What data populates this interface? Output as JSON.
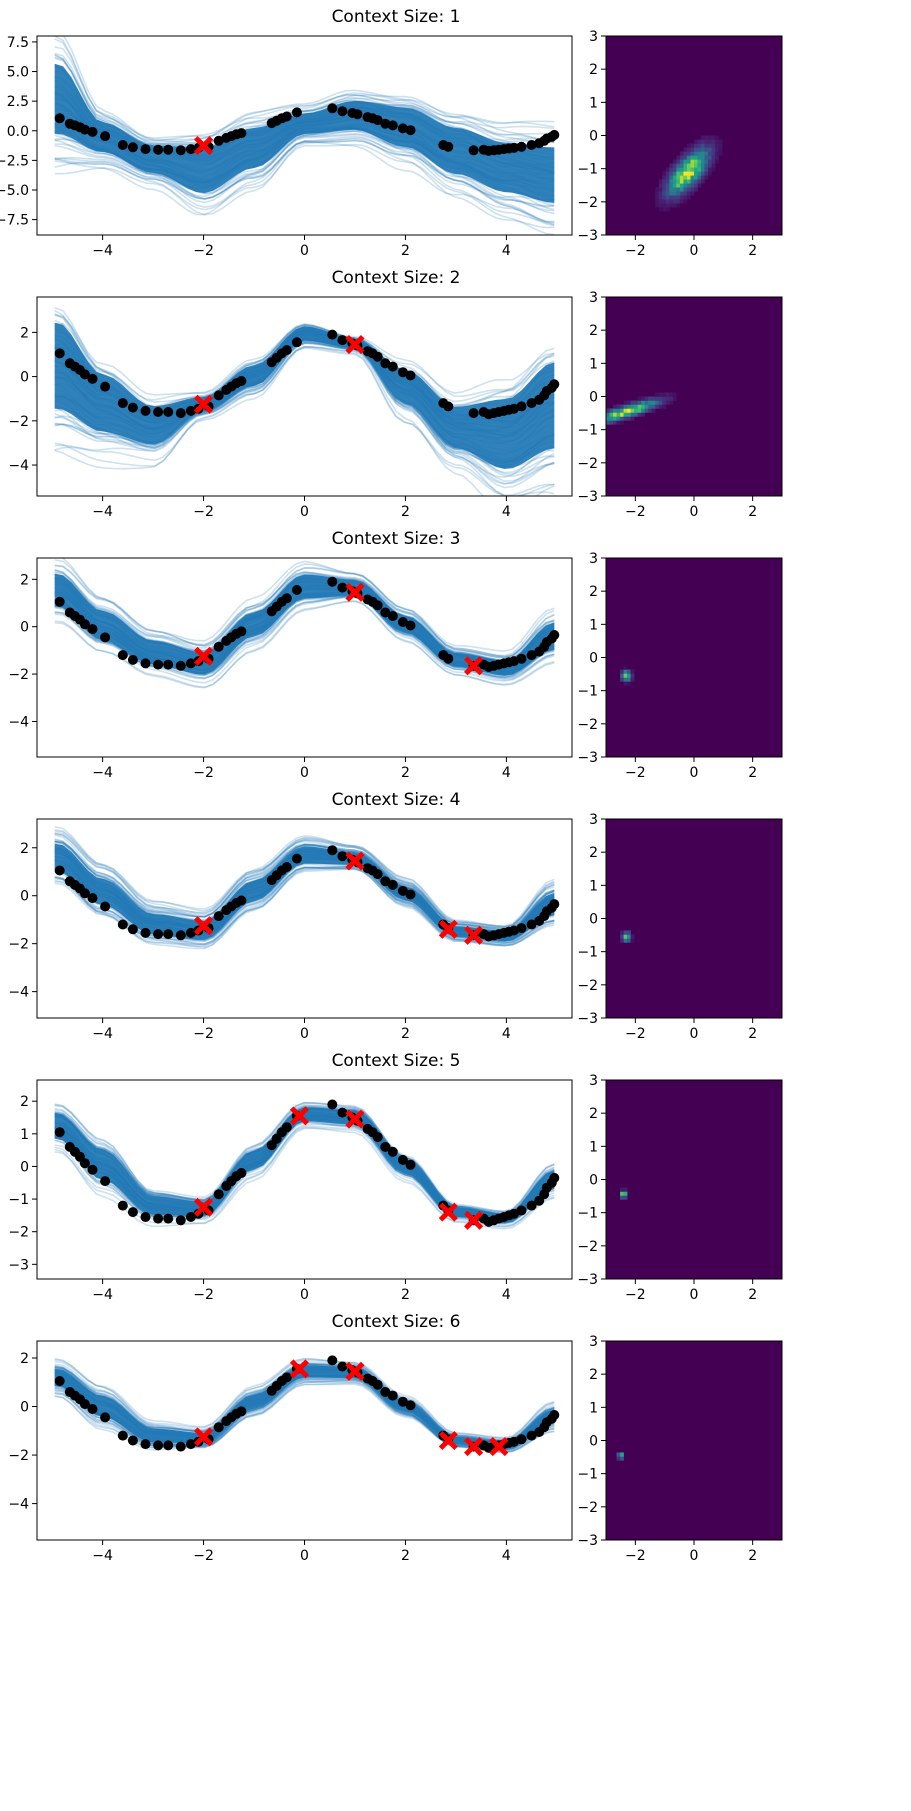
{
  "chart_data": [
    {
      "title": "Context Size: 1",
      "line": {
        "type": "line",
        "xlim": [
          -5.3,
          5.3
        ],
        "ylim": [
          -8.8,
          8.0
        ],
        "xticks": [
          -4,
          -2,
          0,
          2,
          4
        ],
        "yticks": [
          -7.5,
          -5.0,
          -2.5,
          0.0,
          2.5,
          5.0,
          7.5
        ],
        "ytick_labels": [
          "−7.5",
          "−5.0",
          "−2.5",
          "0.0",
          "2.5",
          "5.0",
          "7.5"
        ],
        "samples_color": "#1f77b4",
        "data_color": "#000000",
        "context_color": "#ff0000",
        "context_points": [
          {
            "x": -2.0,
            "y": -1.25
          }
        ],
        "band": {
          "x": [
            -4.9,
            -4.0,
            -3.0,
            -2.0,
            -1.0,
            0.0,
            1.0,
            2.0,
            3.0,
            4.0,
            4.95
          ],
          "lo": [
            -1.4,
            -2.3,
            -4.0,
            -6.0,
            -3.8,
            -0.6,
            -0.4,
            -2.0,
            -4.4,
            -6.0,
            -7.0
          ],
          "hi": [
            6.8,
            1.2,
            -0.8,
            -0.7,
            0.9,
            1.8,
            3.0,
            2.6,
            1.0,
            -0.2,
            -0.5
          ]
        }
      },
      "heatmap": {
        "type": "heatmap",
        "xlim": [
          -3,
          3
        ],
        "ylim": [
          -3,
          3
        ],
        "xticks": [
          -2,
          0,
          2
        ],
        "yticks": [
          -3,
          -2,
          -1,
          0,
          1,
          2,
          3
        ],
        "mode": {
          "x": -0.2,
          "y": -1.1
        },
        "spread": {
          "sx": 0.45,
          "sy": 0.45
        },
        "corr": 0.7
      }
    },
    {
      "title": "Context Size: 2",
      "line": {
        "type": "line",
        "xlim": [
          -5.3,
          5.3
        ],
        "ylim": [
          -5.4,
          3.6
        ],
        "xticks": [
          -4,
          -2,
          0,
          2,
          4
        ],
        "yticks": [
          -4,
          -2,
          0,
          2
        ],
        "ytick_labels": [
          "−4",
          "−2",
          "0",
          "2"
        ],
        "samples_color": "#1f77b4",
        "data_color": "#000000",
        "context_color": "#ff0000",
        "context_points": [
          {
            "x": -2.0,
            "y": -1.25
          },
          {
            "x": 1.0,
            "y": 1.45
          }
        ],
        "band": {
          "x": [
            -4.9,
            -4.0,
            -3.0,
            -2.0,
            -1.0,
            0.0,
            1.0,
            2.0,
            3.0,
            4.0,
            4.95
          ],
          "lo": [
            -2.2,
            -3.0,
            -3.4,
            -1.7,
            -0.6,
            1.5,
            1.2,
            -1.5,
            -3.6,
            -4.8,
            -4.0
          ],
          "hi": [
            3.2,
            0.6,
            -1.0,
            -0.8,
            0.7,
            2.4,
            1.8,
            0.6,
            -1.0,
            -0.4,
            1.4
          ]
        }
      },
      "heatmap": {
        "type": "heatmap",
        "xlim": [
          -3,
          3
        ],
        "ylim": [
          -3,
          3
        ],
        "xticks": [
          -2,
          0,
          2
        ],
        "yticks": [
          -3,
          -2,
          -1,
          0,
          1,
          2,
          3
        ],
        "mode": {
          "x": -2.3,
          "y": -0.45
        },
        "spread": {
          "sx": 0.7,
          "sy": 0.22
        },
        "corr": 0.85
      }
    },
    {
      "title": "Context Size: 3",
      "line": {
        "type": "line",
        "xlim": [
          -5.3,
          5.3
        ],
        "ylim": [
          -5.5,
          2.9
        ],
        "xticks": [
          -4,
          -2,
          0,
          2,
          4
        ],
        "yticks": [
          -4,
          -2,
          0,
          2
        ],
        "ytick_labels": [
          "−4",
          "−2",
          "0",
          "2"
        ],
        "samples_color": "#1f77b4",
        "data_color": "#000000",
        "context_color": "#ff0000",
        "context_points": [
          {
            "x": -2.0,
            "y": -1.25
          },
          {
            "x": 1.0,
            "y": 1.45
          },
          {
            "x": 3.35,
            "y": -1.65
          }
        ],
        "band": {
          "x": [
            -4.9,
            -4.0,
            -3.0,
            -2.0,
            -1.0,
            0.0,
            1.0,
            2.0,
            3.0,
            4.0,
            4.95
          ],
          "lo": [
            0.6,
            -0.8,
            -1.8,
            -2.2,
            -0.6,
            1.0,
            1.2,
            -0.4,
            -1.8,
            -2.2,
            -1.2
          ],
          "hi": [
            2.5,
            0.9,
            -0.4,
            -0.9,
            0.8,
            2.4,
            2.1,
            0.6,
            -1.0,
            -1.3,
            0.4
          ]
        }
      },
      "heatmap": {
        "type": "heatmap",
        "xlim": [
          -3,
          3
        ],
        "ylim": [
          -3,
          3
        ],
        "xticks": [
          -2,
          0,
          2
        ],
        "yticks": [
          -3,
          -2,
          -1,
          0,
          1,
          2,
          3
        ],
        "mode": {
          "x": -2.3,
          "y": -0.55
        },
        "spread": {
          "sx": 0.1,
          "sy": 0.1
        },
        "corr": 0
      }
    },
    {
      "title": "Context Size: 4",
      "line": {
        "type": "line",
        "xlim": [
          -5.3,
          5.3
        ],
        "ylim": [
          -5.1,
          3.2
        ],
        "xticks": [
          -4,
          -2,
          0,
          2,
          4
        ],
        "yticks": [
          -4,
          -2,
          0,
          2
        ],
        "ytick_labels": [
          "−4",
          "−2",
          "0",
          "2"
        ],
        "samples_color": "#1f77b4",
        "data_color": "#000000",
        "context_color": "#ff0000",
        "context_points": [
          {
            "x": -2.0,
            "y": -1.25
          },
          {
            "x": 1.0,
            "y": 1.45
          },
          {
            "x": 2.85,
            "y": -1.4
          },
          {
            "x": 3.35,
            "y": -1.65
          }
        ],
        "band": {
          "x": [
            -4.9,
            -4.0,
            -3.0,
            -2.0,
            -1.0,
            0.0,
            1.0,
            2.0,
            3.0,
            4.0,
            4.95
          ],
          "lo": [
            0.8,
            -0.6,
            -1.8,
            -2.0,
            -0.4,
            1.2,
            1.2,
            -0.3,
            -1.8,
            -2.0,
            -1.0
          ],
          "hi": [
            2.4,
            0.9,
            -0.6,
            -0.9,
            0.8,
            2.2,
            1.9,
            0.5,
            -1.2,
            -1.4,
            0.3
          ]
        }
      },
      "heatmap": {
        "type": "heatmap",
        "xlim": [
          -3,
          3
        ],
        "ylim": [
          -3,
          3
        ],
        "xticks": [
          -2,
          0,
          2
        ],
        "yticks": [
          -3,
          -2,
          -1,
          0,
          1,
          2,
          3
        ],
        "mode": {
          "x": -2.3,
          "y": -0.55
        },
        "spread": {
          "sx": 0.09,
          "sy": 0.09
        },
        "corr": 0
      }
    },
    {
      "title": "Context Size: 5",
      "line": {
        "type": "line",
        "xlim": [
          -5.3,
          5.3
        ],
        "ylim": [
          -3.45,
          2.65
        ],
        "xticks": [
          -4,
          -2,
          0,
          2,
          4
        ],
        "yticks": [
          -3,
          -2,
          -1,
          0,
          1,
          2
        ],
        "ytick_labels": [
          "−3",
          "−2",
          "−1",
          "0",
          "1",
          "2"
        ],
        "samples_color": "#1f77b4",
        "data_color": "#000000",
        "context_color": "#ff0000",
        "context_points": [
          {
            "x": -2.0,
            "y": -1.25
          },
          {
            "x": -0.1,
            "y": 1.55
          },
          {
            "x": 1.0,
            "y": 1.45
          },
          {
            "x": 2.85,
            "y": -1.4
          },
          {
            "x": 3.35,
            "y": -1.65
          }
        ],
        "band": {
          "x": [
            -4.9,
            -4.0,
            -3.0,
            -2.0,
            -1.0,
            0.0,
            1.0,
            2.0,
            3.0,
            4.0,
            4.95
          ],
          "lo": [
            0.7,
            -0.6,
            -1.6,
            -1.6,
            -0.2,
            1.3,
            1.2,
            -0.3,
            -1.6,
            -1.8,
            -0.8
          ],
          "hi": [
            1.8,
            0.7,
            -0.8,
            -1.0,
            0.6,
            1.9,
            1.8,
            0.3,
            -1.2,
            -1.4,
            0.0
          ]
        }
      },
      "heatmap": {
        "type": "heatmap",
        "xlim": [
          -3,
          3
        ],
        "ylim": [
          -3,
          3
        ],
        "xticks": [
          -2,
          0,
          2
        ],
        "yticks": [
          -3,
          -2,
          -1,
          0,
          1,
          2,
          3
        ],
        "mode": {
          "x": -2.4,
          "y": -0.45
        },
        "spread": {
          "sx": 0.07,
          "sy": 0.07
        },
        "corr": 0
      }
    },
    {
      "title": "Context Size: 6",
      "line": {
        "type": "line",
        "xlim": [
          -5.3,
          5.3
        ],
        "ylim": [
          -5.5,
          2.7
        ],
        "xticks": [
          -4,
          -2,
          0,
          2,
          4
        ],
        "yticks": [
          -4,
          -2,
          0,
          2
        ],
        "ytick_labels": [
          "−4",
          "−2",
          "0",
          "2"
        ],
        "samples_color": "#1f77b4",
        "data_color": "#000000",
        "context_color": "#ff0000",
        "context_points": [
          {
            "x": -2.0,
            "y": -1.25
          },
          {
            "x": -0.1,
            "y": 1.55
          },
          {
            "x": 1.0,
            "y": 1.45
          },
          {
            "x": 2.85,
            "y": -1.4
          },
          {
            "x": 3.35,
            "y": -1.65
          },
          {
            "x": 3.85,
            "y": -1.65
          }
        ],
        "band": {
          "x": [
            -4.9,
            -4.0,
            -3.0,
            -2.0,
            -1.0,
            0.0,
            1.0,
            2.0,
            3.0,
            4.0,
            4.95
          ],
          "lo": [
            0.7,
            -0.6,
            -1.6,
            -1.6,
            -0.2,
            1.1,
            1.1,
            -0.3,
            -1.6,
            -1.8,
            -0.8
          ],
          "hi": [
            1.7,
            0.6,
            -0.8,
            -1.0,
            0.6,
            1.8,
            1.7,
            0.3,
            -1.2,
            -1.4,
            0.0
          ]
        }
      },
      "heatmap": {
        "type": "heatmap",
        "xlim": [
          -3,
          3
        ],
        "ylim": [
          -3,
          3
        ],
        "xticks": [
          -2,
          0,
          2
        ],
        "yticks": [
          -3,
          -2,
          -1,
          0,
          1,
          2,
          3
        ],
        "mode": {
          "x": -2.5,
          "y": -0.45
        },
        "spread": {
          "sx": 0.06,
          "sy": 0.06
        },
        "corr": 0
      }
    }
  ],
  "observed_data": {
    "x": [
      -4.85,
      -4.65,
      -4.55,
      -4.45,
      -4.35,
      -4.2,
      -3.95,
      -3.6,
      -3.4,
      -3.15,
      -2.9,
      -2.7,
      -2.45,
      -2.25,
      -2.1,
      -1.9,
      -1.7,
      -1.55,
      -1.45,
      -1.35,
      -1.25,
      -0.65,
      -0.55,
      -0.45,
      -0.35,
      -0.15,
      0.55,
      0.75,
      0.95,
      1.05,
      1.25,
      1.35,
      1.45,
      1.6,
      1.75,
      1.95,
      2.1,
      2.75,
      2.85,
      3.35,
      3.55,
      3.65,
      3.75,
      3.85,
      3.95,
      4.05,
      4.15,
      4.3,
      4.5,
      4.65,
      4.75,
      4.8,
      4.9,
      4.95
    ],
    "y": [
      1.05,
      0.6,
      0.45,
      0.3,
      0.1,
      -0.1,
      -0.45,
      -1.2,
      -1.4,
      -1.55,
      -1.6,
      -1.6,
      -1.65,
      -1.55,
      -1.45,
      -1.35,
      -0.85,
      -0.6,
      -0.45,
      -0.3,
      -0.2,
      0.65,
      0.85,
      1.05,
      1.2,
      1.55,
      1.9,
      1.65,
      1.5,
      1.4,
      1.15,
      1.05,
      0.9,
      0.6,
      0.45,
      0.2,
      0.05,
      -1.2,
      -1.35,
      -1.65,
      -1.6,
      -1.7,
      -1.65,
      -1.6,
      -1.55,
      -1.5,
      -1.45,
      -1.35,
      -1.2,
      -1.05,
      -0.85,
      -0.65,
      -0.5,
      -0.35
    ]
  }
}
